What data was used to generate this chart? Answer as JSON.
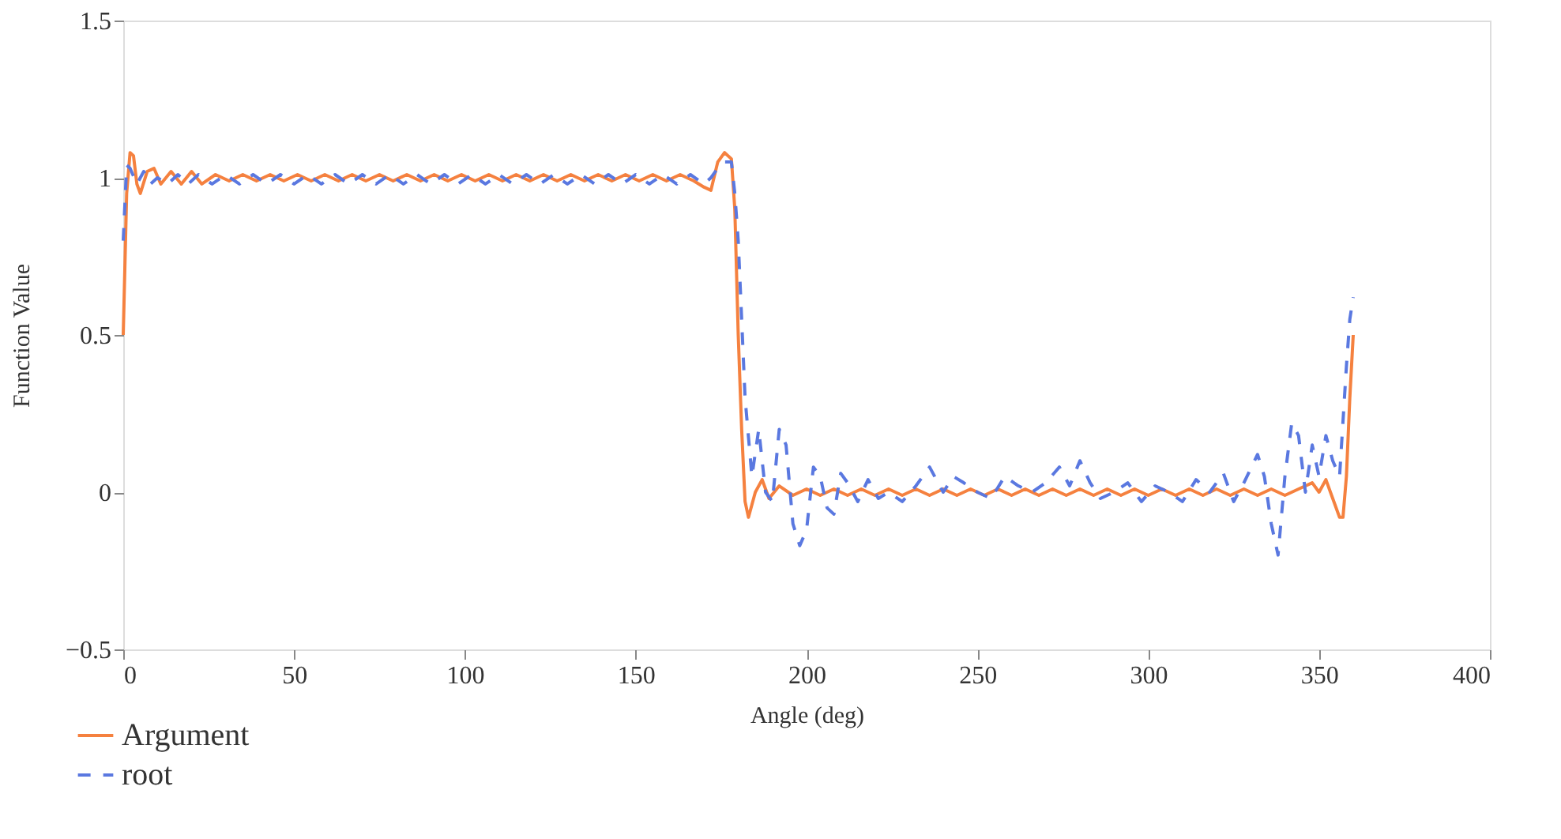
{
  "chart_data": {
    "type": "line",
    "xlabel": "Angle (deg)",
    "ylabel": "Function Value",
    "xlim": [
      0,
      400
    ],
    "xticks": [
      0,
      50,
      100,
      150,
      200,
      250,
      300,
      350,
      400
    ],
    "ylim": [
      -0.5,
      1.5
    ],
    "yticks": [
      {
        "value": -0.5,
        "label": "−0.5"
      },
      0,
      0.5,
      1,
      1.5
    ],
    "grid": false,
    "legend": "bottom left",
    "marker": "none",
    "series": [
      {
        "name": "Argument",
        "color": "#f5813f",
        "line_style": "solid",
        "x": [
          0,
          1,
          2,
          3,
          4,
          5,
          7,
          9,
          11,
          14,
          17,
          20,
          23,
          27,
          31,
          35,
          39,
          43,
          47,
          51,
          55,
          59,
          63,
          67,
          71,
          75,
          79,
          83,
          87,
          91,
          95,
          99,
          103,
          107,
          111,
          115,
          119,
          123,
          127,
          131,
          135,
          139,
          143,
          147,
          151,
          155,
          159,
          163,
          167,
          170,
          172,
          174,
          176,
          178,
          179,
          180,
          181,
          182,
          183,
          185,
          187,
          189,
          192,
          196,
          200,
          204,
          208,
          212,
          216,
          220,
          224,
          228,
          232,
          236,
          240,
          244,
          248,
          252,
          256,
          260,
          264,
          268,
          272,
          276,
          280,
          284,
          288,
          292,
          296,
          300,
          304,
          308,
          312,
          316,
          320,
          324,
          328,
          332,
          336,
          340,
          344,
          348,
          350,
          352,
          354,
          356,
          357,
          358,
          359,
          360
        ],
        "values": [
          0.5,
          0.95,
          1.08,
          1.07,
          0.98,
          0.95,
          1.02,
          1.03,
          0.98,
          1.02,
          0.98,
          1.02,
          0.98,
          1.01,
          0.99,
          1.01,
          0.99,
          1.01,
          0.99,
          1.01,
          0.99,
          1.01,
          0.99,
          1.01,
          0.99,
          1.01,
          0.99,
          1.01,
          0.99,
          1.01,
          0.99,
          1.01,
          0.99,
          1.01,
          0.99,
          1.01,
          0.99,
          1.01,
          0.99,
          1.01,
          0.99,
          1.01,
          0.99,
          1.01,
          0.99,
          1.01,
          0.99,
          1.01,
          0.99,
          0.97,
          0.96,
          1.05,
          1.08,
          1.06,
          0.9,
          0.5,
          0.2,
          -0.03,
          -0.08,
          0.0,
          0.04,
          -0.02,
          0.02,
          -0.01,
          0.01,
          -0.01,
          0.01,
          -0.01,
          0.01,
          -0.01,
          0.01,
          -0.01,
          0.01,
          -0.01,
          0.01,
          -0.01,
          0.01,
          -0.01,
          0.01,
          -0.01,
          0.01,
          -0.01,
          0.01,
          -0.01,
          0.01,
          -0.01,
          0.01,
          -0.01,
          0.01,
          -0.01,
          0.01,
          -0.01,
          0.01,
          -0.01,
          0.01,
          -0.01,
          0.01,
          -0.01,
          0.01,
          -0.01,
          0.01,
          0.03,
          0.0,
          0.04,
          -0.02,
          -0.08,
          -0.08,
          0.05,
          0.3,
          0.5
        ]
      },
      {
        "name": "root",
        "color": "#5a78e0",
        "line_style": "dashed",
        "x": [
          0,
          1,
          2,
          4,
          6,
          8,
          10,
          13,
          16,
          19,
          22,
          26,
          30,
          34,
          38,
          42,
          46,
          50,
          54,
          58,
          62,
          66,
          70,
          74,
          78,
          82,
          86,
          90,
          94,
          98,
          102,
          106,
          110,
          114,
          118,
          122,
          126,
          130,
          134,
          138,
          142,
          146,
          150,
          154,
          158,
          162,
          166,
          170,
          172,
          174,
          176,
          178,
          179,
          180,
          182,
          184,
          186,
          188,
          190,
          192,
          194,
          196,
          198,
          200,
          202,
          204,
          206,
          208,
          210,
          212,
          215,
          218,
          221,
          224,
          228,
          232,
          236,
          238,
          240,
          243,
          246,
          250,
          254,
          258,
          262,
          266,
          270,
          274,
          277,
          280,
          283,
          286,
          290,
          294,
          298,
          302,
          306,
          310,
          314,
          318,
          322,
          325,
          328,
          332,
          334,
          336,
          338,
          340,
          342,
          344,
          346,
          348,
          350,
          352,
          354,
          356,
          358,
          359,
          360
        ],
        "values": [
          0.8,
          1.04,
          1.03,
          0.98,
          1.02,
          0.98,
          1.0,
          0.98,
          1.01,
          0.98,
          1.01,
          0.98,
          1.01,
          0.98,
          1.01,
          0.98,
          1.01,
          0.98,
          1.01,
          0.98,
          1.01,
          0.98,
          1.01,
          0.98,
          1.01,
          0.98,
          1.01,
          0.98,
          1.01,
          0.98,
          1.01,
          0.98,
          1.01,
          0.98,
          1.01,
          0.98,
          1.01,
          0.98,
          1.01,
          0.98,
          1.01,
          0.98,
          1.01,
          0.98,
          1.01,
          0.98,
          1.01,
          0.98,
          1.0,
          1.03,
          1.05,
          1.05,
          0.95,
          0.8,
          0.3,
          0.05,
          0.2,
          0.0,
          -0.03,
          0.2,
          0.15,
          -0.1,
          -0.17,
          -0.12,
          0.08,
          0.05,
          -0.05,
          -0.07,
          0.06,
          0.03,
          -0.03,
          0.04,
          -0.02,
          0.0,
          -0.03,
          0.02,
          0.08,
          0.04,
          0.0,
          0.05,
          0.03,
          0.0,
          -0.02,
          0.05,
          0.02,
          0.0,
          0.03,
          0.08,
          0.02,
          0.1,
          0.03,
          -0.02,
          0.0,
          0.03,
          -0.03,
          0.02,
          0.0,
          -0.03,
          0.04,
          0.0,
          0.06,
          -0.03,
          0.03,
          0.12,
          0.05,
          -0.1,
          -0.2,
          0.05,
          0.22,
          0.18,
          0.0,
          0.15,
          0.05,
          0.18,
          0.1,
          0.05,
          0.4,
          0.55,
          0.62
        ]
      }
    ]
  }
}
